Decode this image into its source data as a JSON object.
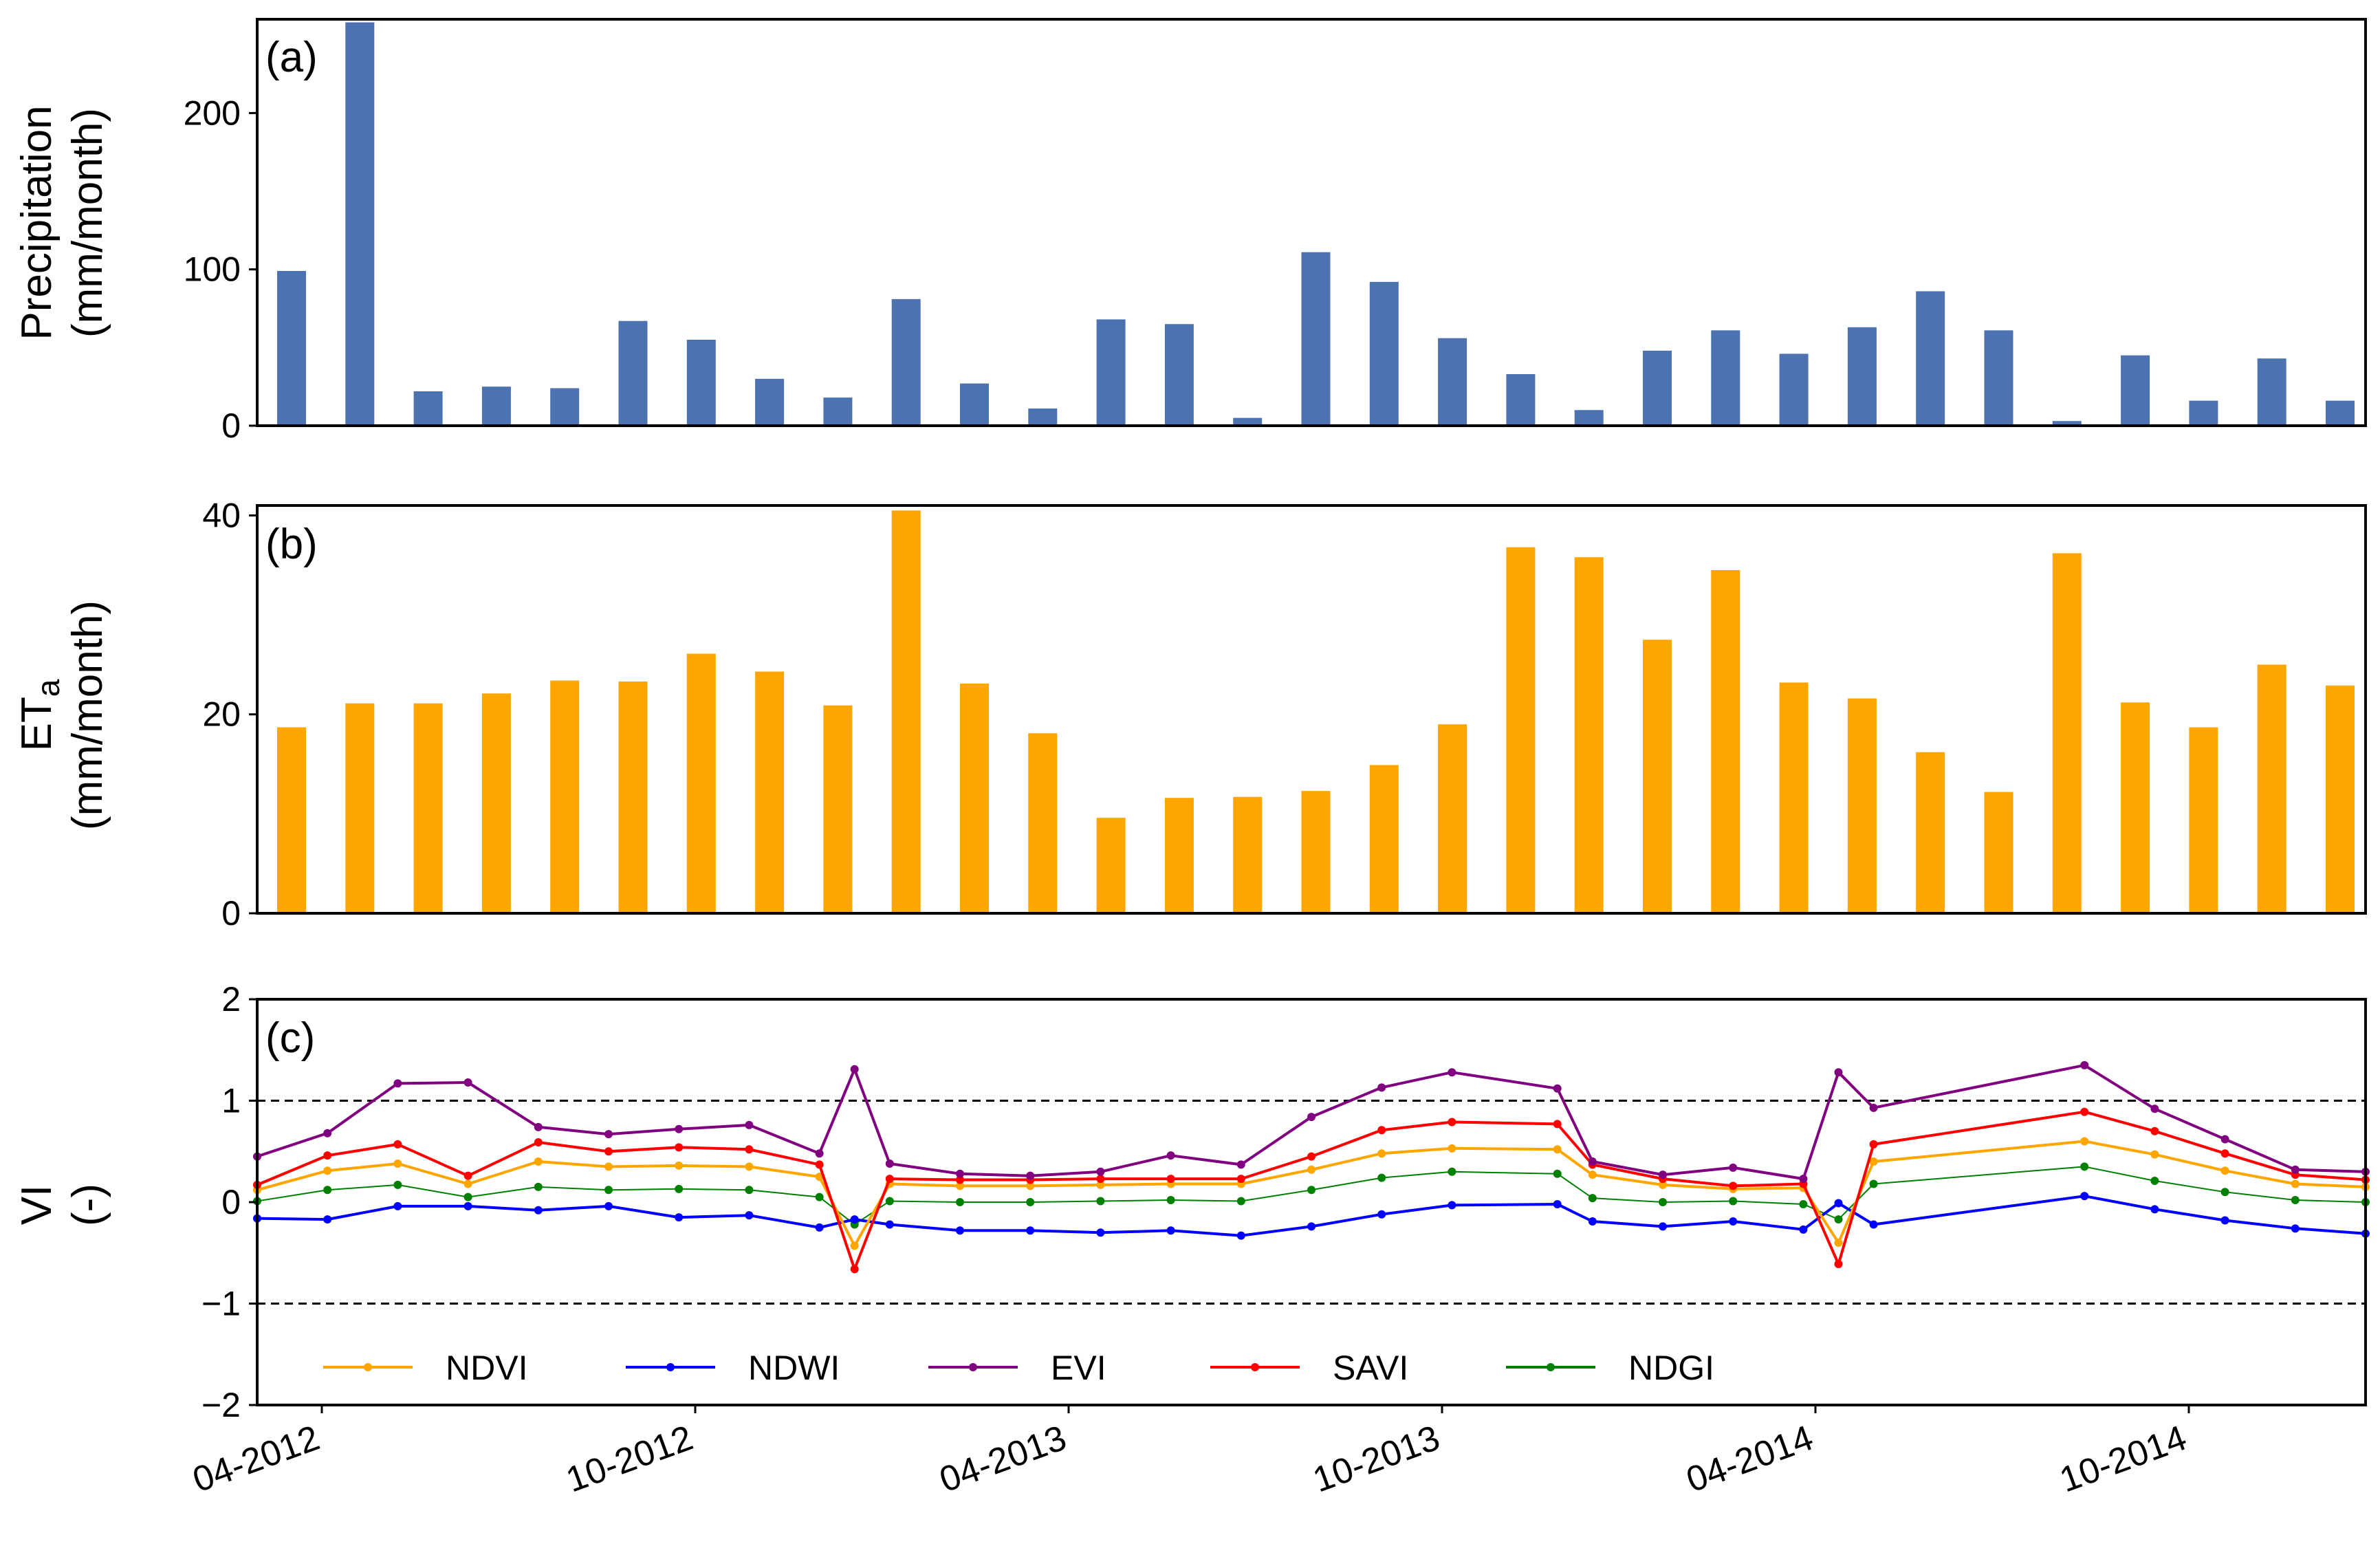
{
  "chart_data": [
    {
      "panel": "(a)",
      "type": "bar",
      "ylabel_line1": "Precipitation",
      "ylabel_line2": "(mm/month)",
      "ylim": [
        0,
        260
      ],
      "yticks": [
        "0",
        "100",
        "200"
      ],
      "yticks_values": [
        0,
        100,
        200
      ],
      "color": "#4C72B0",
      "values": [
        99,
        258,
        22,
        25,
        24,
        67,
        55,
        30,
        18,
        81,
        27,
        11,
        68,
        65,
        5,
        111,
        92,
        56,
        33,
        10,
        48,
        61,
        46,
        63,
        86,
        61,
        3,
        45,
        16,
        43,
        16
      ]
    },
    {
      "panel": "(b)",
      "type": "bar",
      "ylabel_main": "ET",
      "ylabel_sub": "a",
      "ylabel_line2": "(mm/month)",
      "ylim": [
        0,
        41
      ],
      "yticks": [
        "0",
        "20",
        "40"
      ],
      "yticks_values": [
        0,
        20,
        40
      ],
      "color": "#FFA500",
      "values": [
        18.7,
        21.1,
        21.1,
        22.1,
        23.4,
        23.3,
        26.1,
        24.3,
        20.9,
        40.5,
        23.1,
        18.1,
        9.6,
        11.6,
        11.7,
        12.3,
        14.9,
        19,
        36.8,
        35.8,
        27.5,
        34.5,
        23.2,
        21.6,
        16.2,
        12.2,
        36.2,
        21.2,
        18.7,
        25,
        22.9
      ]
    },
    {
      "panel": "(c)",
      "type": "line",
      "ylabel_main": "VI",
      "ylabel_line2": "(-)",
      "ylim": [
        -2,
        2
      ],
      "yticks": [
        "−2",
        "−1",
        "0",
        "1",
        "2"
      ],
      "yticks_values": [
        -2,
        -1,
        0,
        1,
        2
      ],
      "hlines": [
        1,
        -1
      ],
      "x": [
        0,
        1,
        2,
        3,
        4,
        5,
        6,
        7,
        8,
        9,
        10,
        11,
        12,
        13,
        14,
        15,
        16,
        17,
        18,
        19,
        20,
        21,
        22,
        23,
        24,
        25,
        26,
        27,
        28,
        29,
        30
      ],
      "x_index": [
        0,
        0.5,
        1.5,
        2.5,
        3.5,
        4.5,
        5.5,
        6.5,
        7.5,
        8.25,
        9,
        10,
        11,
        12,
        13,
        14,
        15,
        16,
        17.5,
        19,
        20,
        21,
        22,
        22.5,
        23.5,
        24.5,
        25.5,
        27,
        27.5,
        28.5,
        29.5,
        30.5,
        31
      ],
      "series": [
        {
          "name": "NDVI",
          "color": "#FFA500",
          "values": [
            0.12,
            0.31,
            0.38,
            0.18,
            0.4,
            0.35,
            0.36,
            0.35,
            0.25,
            -0.43,
            0.18,
            0.16,
            0.16,
            0.17,
            0.18,
            0.18,
            0.32,
            0.48,
            0.53,
            0.52,
            0.27,
            0.17,
            0.13,
            0.14,
            -0.4,
            0.4,
            0.6,
            0.47,
            0.31,
            0.18,
            0.15
          ]
        },
        {
          "name": "NDWI",
          "color": "#0000FF",
          "values": [
            -0.16,
            -0.17,
            -0.04,
            -0.04,
            -0.08,
            -0.04,
            -0.15,
            -0.13,
            -0.25,
            -0.17,
            -0.22,
            -0.28,
            -0.28,
            -0.3,
            -0.28,
            -0.33,
            -0.24,
            -0.12,
            -0.03,
            -0.02,
            -0.19,
            -0.24,
            -0.19,
            -0.27,
            -0.01,
            -0.22,
            0.06,
            -0.07,
            -0.18,
            -0.26,
            -0.31
          ]
        },
        {
          "name": "EVI",
          "color": "#800080",
          "values": [
            0.45,
            0.68,
            1.17,
            1.18,
            0.74,
            0.67,
            0.72,
            0.76,
            0.48,
            1.31,
            0.38,
            0.28,
            0.26,
            0.3,
            0.46,
            0.37,
            0.84,
            1.13,
            1.28,
            1.12,
            0.4,
            0.27,
            0.34,
            0.23,
            1.28,
            0.93,
            1.35,
            0.92,
            0.62,
            0.32,
            0.3
          ]
        },
        {
          "name": "SAVI",
          "color": "#FF0000",
          "values": [
            0.17,
            0.46,
            0.57,
            0.26,
            0.59,
            0.5,
            0.54,
            0.52,
            0.37,
            -0.66,
            0.23,
            0.22,
            0.22,
            0.23,
            0.23,
            0.23,
            0.45,
            0.71,
            0.79,
            0.77,
            0.37,
            0.23,
            0.16,
            0.18,
            -0.61,
            0.57,
            0.89,
            0.7,
            0.48,
            0.27,
            0.22
          ]
        },
        {
          "name": "NDGI",
          "color": "#008000",
          "values": [
            0.01,
            0.12,
            0.17,
            0.05,
            0.15,
            0.12,
            0.13,
            0.12,
            0.05,
            -0.22,
            0.01,
            0.0,
            0.0,
            0.01,
            0.02,
            0.01,
            0.12,
            0.24,
            0.3,
            0.28,
            0.04,
            0.0,
            0.01,
            -0.02,
            -0.17,
            0.18,
            0.35,
            0.21,
            0.1,
            0.02,
            0.0
          ]
        }
      ],
      "legend_placement": "bottom"
    }
  ],
  "x_tick_labels": [
    "04-2012",
    "10-2012",
    "04-2013",
    "10-2013",
    "04-2014",
    "10-2014"
  ],
  "x_tick_indices": [
    0.5,
    6.0,
    11.5,
    17.0,
    22.5,
    28.0
  ]
}
